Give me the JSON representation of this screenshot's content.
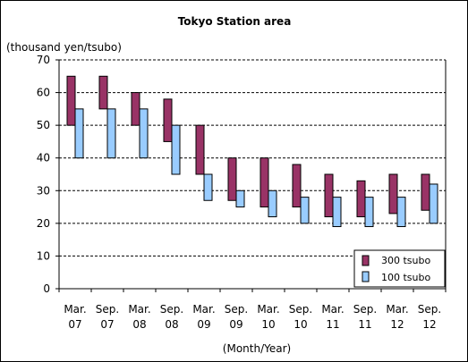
{
  "chart_data": {
    "type": "bar",
    "title": "Tokyo Station area",
    "ylabel": "(thousand yen/tsubo)",
    "xlabel": "(Month/Year)",
    "ylim": [
      0,
      70
    ],
    "yticks": [
      0,
      10,
      20,
      30,
      40,
      50,
      60,
      70
    ],
    "grid": true,
    "legend_position": "bottom-right",
    "categories": [
      [
        "Mar.",
        "07"
      ],
      [
        "Sep.",
        "07"
      ],
      [
        "Mar.",
        "08"
      ],
      [
        "Sep.",
        "08"
      ],
      [
        "Mar.",
        "09"
      ],
      [
        "Sep.",
        "09"
      ],
      [
        "Mar.",
        "10"
      ],
      [
        "Sep.",
        "10"
      ],
      [
        "Mar.",
        "11"
      ],
      [
        "Sep.",
        "11"
      ],
      [
        "Mar.",
        "12"
      ],
      [
        "Sep.",
        "12"
      ]
    ],
    "series": [
      {
        "name": "300 tsubo",
        "color": "#993366",
        "low": [
          50,
          55,
          50,
          45,
          35,
          27,
          25,
          25,
          22,
          22,
          23,
          24
        ],
        "high": [
          65,
          65,
          60,
          58,
          50,
          40,
          40,
          38,
          35,
          33,
          35,
          35
        ]
      },
      {
        "name": "100 tsubo",
        "color": "#99ccff",
        "low": [
          40,
          40,
          40,
          35,
          27,
          25,
          22,
          20,
          19,
          19,
          19,
          20
        ],
        "high": [
          55,
          55,
          55,
          50,
          35,
          30,
          30,
          28,
          28,
          28,
          28,
          32
        ]
      }
    ]
  }
}
